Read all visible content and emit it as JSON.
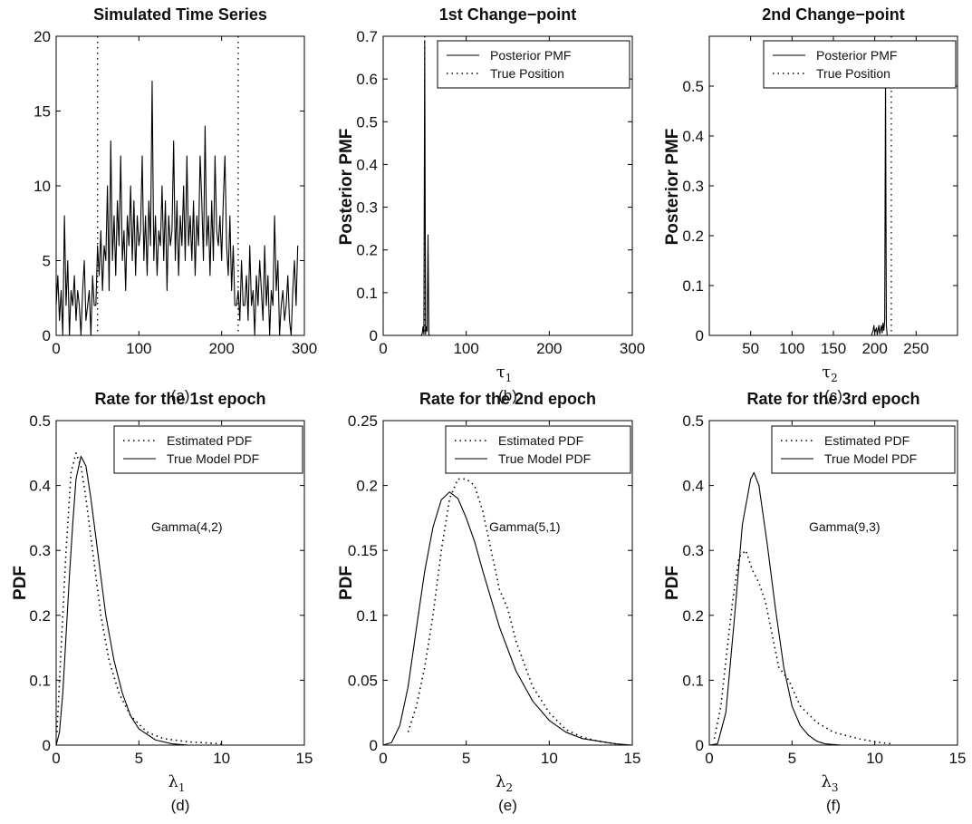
{
  "chart_data": [
    {
      "id": "a",
      "type": "line",
      "title": "Simulated Time Series",
      "caption": "(a)",
      "xlabel": "",
      "ylabel": "",
      "xlim": [
        0,
        300
      ],
      "ylim": [
        0,
        20
      ],
      "xticks": [
        "0",
        "100",
        "200",
        "300"
      ],
      "yticks": [
        "0",
        "5",
        "10",
        "15",
        "20"
      ],
      "vlines": [
        50,
        220
      ],
      "series": [
        {
          "style": "solid",
          "x_start": 0,
          "x_step": 2,
          "values": [
            2,
            4,
            1,
            3,
            0,
            8,
            2,
            5,
            0,
            3,
            2,
            4,
            1,
            3,
            2,
            0,
            3,
            5,
            1,
            2,
            3,
            0,
            4,
            2,
            2,
            6,
            4,
            7,
            3,
            6,
            5,
            10,
            3,
            13,
            5,
            8,
            4,
            9,
            6,
            12,
            5,
            7,
            3,
            8,
            6,
            10,
            5,
            9,
            4,
            8,
            6,
            7,
            12,
            5,
            8,
            4,
            9,
            6,
            17,
            5,
            8,
            4,
            7,
            6,
            10,
            5,
            9,
            3,
            8,
            6,
            7,
            13,
            5,
            9,
            4,
            8,
            6,
            10,
            5,
            12,
            6,
            8,
            5,
            9,
            4,
            8,
            6,
            12,
            9,
            5,
            14,
            6,
            8,
            4,
            9,
            5,
            12,
            7,
            6,
            8,
            5,
            9,
            12,
            6,
            4,
            8,
            3,
            6,
            2,
            2,
            3,
            1,
            5,
            2,
            2,
            4,
            1,
            6,
            2,
            3,
            0,
            4,
            2,
            5,
            3,
            1,
            6,
            2,
            4,
            0,
            3,
            2,
            8,
            3,
            5,
            0,
            2,
            3,
            1,
            2,
            4,
            1,
            0,
            3,
            5,
            2,
            6
          ]
        }
      ]
    },
    {
      "id": "b",
      "type": "line",
      "title": "1st Change−point",
      "caption": "(b)",
      "xlabel_symbol": "τ",
      "xlabel_sub": "1",
      "ylabel": "Posterior PMF",
      "xlim": [
        0,
        300
      ],
      "ylim": [
        0,
        0.7
      ],
      "xticks": [
        "0",
        "100",
        "200",
        "300"
      ],
      "yticks": [
        "0",
        "0.1",
        "0.2",
        "0.3",
        "0.4",
        "0.5",
        "0.6",
        "0.7"
      ],
      "legend": [
        "Posterior PMF",
        "True Position"
      ],
      "legend_position": "top-right",
      "vlines": [
        50
      ],
      "series": [
        {
          "name": "Posterior PMF",
          "style": "solid",
          "points": [
            [
              0,
              0
            ],
            [
              46,
              0
            ],
            [
              47,
              0.005
            ],
            [
              48,
              0.02
            ],
            [
              49,
              0.003
            ],
            [
              50,
              0.69
            ],
            [
              51,
              0.003
            ],
            [
              52,
              0.02
            ],
            [
              53,
              0.01
            ],
            [
              54,
              0.235
            ],
            [
              55,
              0.003
            ],
            [
              56,
              0
            ],
            [
              300,
              0
            ]
          ]
        },
        {
          "name": "True Position",
          "style": "dotted"
        }
      ]
    },
    {
      "id": "c",
      "type": "line",
      "title": "2nd Change−point",
      "caption": "(c)",
      "xlabel_symbol": "τ",
      "xlabel_sub": "2",
      "ylabel": "Posterior PMF",
      "xlim": [
        0,
        300
      ],
      "ylim": [
        0,
        0.6
      ],
      "xticks": [
        "50",
        "100",
        "150",
        "200",
        "250"
      ],
      "yticks": [
        "0",
        "0.1",
        "0.2",
        "0.3",
        "0.4",
        "0.5"
      ],
      "legend": [
        "Posterior PMF",
        "True Position"
      ],
      "legend_position": "top-right",
      "vlines": [
        220
      ],
      "series": [
        {
          "name": "Posterior PMF",
          "style": "solid",
          "points": [
            [
              0,
              0
            ],
            [
              196,
              0
            ],
            [
              198,
              0.01
            ],
            [
              199,
              0.02
            ],
            [
              200,
              0.005
            ],
            [
              202,
              0.015
            ],
            [
              203,
              0.002
            ],
            [
              205,
              0.02
            ],
            [
              206,
              0.003
            ],
            [
              208,
              0.02
            ],
            [
              209,
              0.005
            ],
            [
              210,
              0.025
            ],
            [
              211,
              0.01
            ],
            [
              212,
              0.03
            ],
            [
              213,
              0.525
            ],
            [
              214,
              0.02
            ],
            [
              215,
              0
            ],
            [
              300,
              0
            ]
          ]
        },
        {
          "name": "True Position",
          "style": "dotted"
        }
      ]
    },
    {
      "id": "d",
      "type": "line",
      "title": "Rate for the 1st epoch",
      "caption": "(d)",
      "xlabel_symbol": "λ",
      "xlabel_sub": "1",
      "ylabel": "PDF",
      "xlim": [
        0,
        15
      ],
      "ylim": [
        0,
        0.5
      ],
      "xticks": [
        "0",
        "5",
        "10",
        "15"
      ],
      "yticks": [
        "0",
        "0.1",
        "0.2",
        "0.3",
        "0.4",
        "0.5"
      ],
      "legend": [
        "Estimated PDF",
        "True Model PDF"
      ],
      "legend_position": "top-right",
      "annotation": "Gamma(4,2)",
      "series": [
        {
          "name": "Estimated PDF",
          "style": "dotted",
          "points": [
            [
              0.05,
              0.02
            ],
            [
              0.3,
              0.15
            ],
            [
              0.6,
              0.3
            ],
            [
              0.9,
              0.42
            ],
            [
              1.2,
              0.45
            ],
            [
              1.5,
              0.43
            ],
            [
              1.8,
              0.38
            ],
            [
              2.2,
              0.3
            ],
            [
              2.7,
              0.2
            ],
            [
              3.2,
              0.13
            ],
            [
              3.8,
              0.08
            ],
            [
              4.5,
              0.045
            ],
            [
              5.5,
              0.02
            ],
            [
              6.5,
              0.01
            ],
            [
              8,
              0.005
            ],
            [
              10,
              0.002
            ]
          ]
        },
        {
          "name": "True Model PDF",
          "style": "solid",
          "points": [
            [
              0,
              0
            ],
            [
              0.2,
              0.02
            ],
            [
              0.4,
              0.08
            ],
            [
              0.6,
              0.17
            ],
            [
              0.8,
              0.26
            ],
            [
              1.0,
              0.34
            ],
            [
              1.2,
              0.41
            ],
            [
              1.5,
              0.445
            ],
            [
              1.8,
              0.43
            ],
            [
              2.1,
              0.38
            ],
            [
              2.5,
              0.3
            ],
            [
              3.0,
              0.2
            ],
            [
              3.5,
              0.13
            ],
            [
              4.0,
              0.08
            ],
            [
              4.5,
              0.045
            ],
            [
              5.0,
              0.025
            ],
            [
              6.0,
              0.008
            ],
            [
              7.0,
              0.002
            ],
            [
              8.0,
              0
            ],
            [
              15,
              0
            ]
          ]
        }
      ]
    },
    {
      "id": "e",
      "type": "line",
      "title": "Rate for the 2nd epoch",
      "caption": "(e)",
      "xlabel_symbol": "λ",
      "xlabel_sub": "2",
      "ylabel": "PDF",
      "xlim": [
        0,
        15
      ],
      "ylim": [
        0,
        0.25
      ],
      "xticks": [
        "0",
        "5",
        "10",
        "15"
      ],
      "yticks": [
        "0",
        "0.05",
        "0.1",
        "0.15",
        "0.2",
        "0.25"
      ],
      "legend": [
        "Estimated PDF",
        "True Model PDF"
      ],
      "legend_position": "top-right",
      "annotation": "Gamma(5,1)",
      "series": [
        {
          "name": "Estimated PDF",
          "style": "dotted",
          "points": [
            [
              1.5,
              0.01
            ],
            [
              2,
              0.03
            ],
            [
              2.5,
              0.06
            ],
            [
              3,
              0.1
            ],
            [
              3.5,
              0.15
            ],
            [
              4,
              0.19
            ],
            [
              4.5,
              0.205
            ],
            [
              5,
              0.205
            ],
            [
              5.5,
              0.2
            ],
            [
              6,
              0.18
            ],
            [
              6.5,
              0.15
            ],
            [
              7,
              0.12
            ],
            [
              7.5,
              0.105
            ],
            [
              8,
              0.08
            ],
            [
              9,
              0.045
            ],
            [
              10,
              0.025
            ],
            [
              11,
              0.012
            ],
            [
              12,
              0.006
            ],
            [
              13,
              0.003
            ],
            [
              14,
              0.001
            ]
          ]
        },
        {
          "name": "True Model PDF",
          "style": "solid",
          "points": [
            [
              0,
              0
            ],
            [
              0.5,
              0.002
            ],
            [
              1,
              0.015
            ],
            [
              1.5,
              0.045
            ],
            [
              2,
              0.09
            ],
            [
              2.5,
              0.134
            ],
            [
              3,
              0.168
            ],
            [
              3.5,
              0.189
            ],
            [
              4,
              0.195
            ],
            [
              4.5,
              0.19
            ],
            [
              5,
              0.175
            ],
            [
              5.5,
              0.157
            ],
            [
              6,
              0.134
            ],
            [
              7,
              0.091
            ],
            [
              8,
              0.057
            ],
            [
              9,
              0.034
            ],
            [
              10,
              0.019
            ],
            [
              11,
              0.01
            ],
            [
              12,
              0.005
            ],
            [
              13,
              0.003
            ],
            [
              14,
              0.001
            ],
            [
              15,
              0
            ]
          ]
        }
      ]
    },
    {
      "id": "f",
      "type": "line",
      "title": "Rate for the 3rd epoch",
      "caption": "(f)",
      "xlabel_symbol": "λ",
      "xlabel_sub": "3",
      "ylabel": "PDF",
      "xlim": [
        0,
        15
      ],
      "ylim": [
        0,
        0.5
      ],
      "xticks": [
        "0",
        "5",
        "10",
        "15"
      ],
      "yticks": [
        "0",
        "0.1",
        "0.2",
        "0.3",
        "0.4",
        "0.5"
      ],
      "legend": [
        "Estimated PDF",
        "True Model PDF"
      ],
      "legend_position": "top-right",
      "annotation": "Gamma(9,3)",
      "series": [
        {
          "name": "Estimated PDF",
          "style": "dotted",
          "points": [
            [
              0.3,
              0.01
            ],
            [
              0.7,
              0.06
            ],
            [
              1.0,
              0.13
            ],
            [
              1.4,
              0.22
            ],
            [
              1.8,
              0.29
            ],
            [
              2.2,
              0.3
            ],
            [
              2.6,
              0.27
            ],
            [
              3.0,
              0.25
            ],
            [
              3.4,
              0.22
            ],
            [
              3.8,
              0.17
            ],
            [
              4.2,
              0.12
            ],
            [
              4.8,
              0.1
            ],
            [
              5.5,
              0.06
            ],
            [
              6.5,
              0.035
            ],
            [
              7.5,
              0.02
            ],
            [
              9,
              0.01
            ],
            [
              10,
              0.005
            ],
            [
              11,
              0.002
            ]
          ]
        },
        {
          "name": "True Model PDF",
          "style": "solid",
          "points": [
            [
              0,
              0
            ],
            [
              0.5,
              0.002
            ],
            [
              1.0,
              0.05
            ],
            [
              1.5,
              0.19
            ],
            [
              2.0,
              0.34
            ],
            [
              2.5,
              0.41
            ],
            [
              2.7,
              0.42
            ],
            [
              3.0,
              0.4
            ],
            [
              3.5,
              0.31
            ],
            [
              4.0,
              0.21
            ],
            [
              4.5,
              0.12
            ],
            [
              5.0,
              0.06
            ],
            [
              5.5,
              0.03
            ],
            [
              6.0,
              0.015
            ],
            [
              6.5,
              0.006
            ],
            [
              7.0,
              0.002
            ],
            [
              8,
              0
            ],
            [
              15,
              0
            ]
          ]
        }
      ]
    }
  ]
}
